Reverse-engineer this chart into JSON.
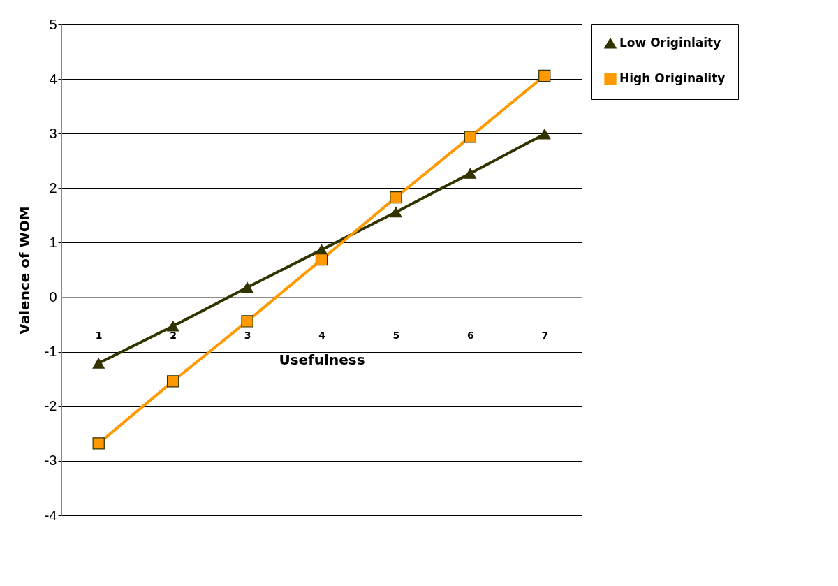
{
  "chart_data": {
    "type": "line",
    "xlabel": "Usefulness",
    "ylabel": "Valence of WOM",
    "categories": [
      "1",
      "2",
      "3",
      "4",
      "5",
      "6",
      "7"
    ],
    "series": [
      {
        "name": "Low Originlaity",
        "color": "#333300",
        "marker": "triangle",
        "values": [
          -1.21,
          -0.53,
          0.18,
          0.87,
          1.56,
          2.27,
          2.99
        ]
      },
      {
        "name": "High Originality",
        "color": "#ff9900",
        "marker": "square",
        "values": [
          -2.68,
          -1.54,
          -0.44,
          0.69,
          1.83,
          2.94,
          4.06
        ]
      }
    ],
    "ylim": [
      -4,
      5
    ],
    "yticks": [
      -4,
      -3,
      -2,
      -1,
      0,
      1,
      2,
      3,
      4,
      5
    ],
    "grid": "y",
    "legend": "right"
  }
}
